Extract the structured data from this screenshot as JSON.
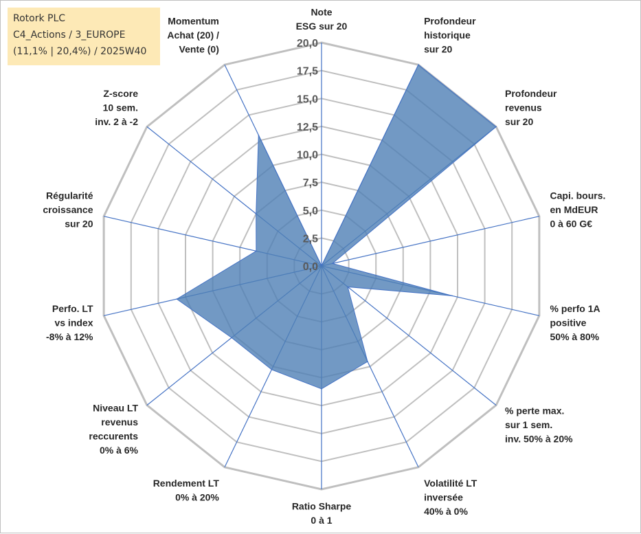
{
  "title_box": {
    "line1": "Rotork PLC",
    "line2": "C4_Actions / 3_EUROPE",
    "line3": "(11,1% | 20,4%) / 2025W40"
  },
  "colors": {
    "fill": "#4f7fb5",
    "stroke": "#4472c4",
    "grid": "#bfbfbf",
    "spoke": "#4472c4",
    "title_bg": "#fde9b6"
  },
  "chart_data": {
    "type": "radar",
    "rmin": 0,
    "rmax": 20,
    "ticks": [
      "0,0",
      "2,5",
      "5,0",
      "7,5",
      "10,0",
      "12,5",
      "15,0",
      "17,5",
      "20,0"
    ],
    "axes": [
      {
        "name": "note-esg",
        "label": [
          "Note",
          "ESG sur 20"
        ],
        "value": 0
      },
      {
        "name": "profondeur-historique",
        "label": [
          "Profondeur",
          "historique",
          "sur 20"
        ],
        "value": 20
      },
      {
        "name": "profondeur-revenus",
        "label": [
          "Profondeur",
          "revenus",
          "sur 20"
        ],
        "value": 20
      },
      {
        "name": "capi-bours",
        "label": [
          "Capi. bours.",
          "en MdEUR",
          "0 à 60 G€"
        ],
        "value": 1
      },
      {
        "name": "perfo-1a-positive",
        "label": [
          "% perfo 1A",
          "positive",
          "50% à 80%"
        ],
        "value": 12
      },
      {
        "name": "perte-max",
        "label": [
          "% perte max.",
          "sur 1 sem.",
          "inv. 50% à 20%"
        ],
        "value": 3
      },
      {
        "name": "volatilite-lt",
        "label": [
          "Volatilité LT",
          "inversée",
          "40% à 0%"
        ],
        "value": 9.5
      },
      {
        "name": "ratio-sharpe",
        "label": [
          "Ratio Sharpe",
          "0 à 1"
        ],
        "value": 11
      },
      {
        "name": "rendement-lt",
        "label": [
          "Rendement LT",
          "0% à 20%"
        ],
        "value": 10.3
      },
      {
        "name": "niveau-lt-revenus",
        "label": [
          "Niveau LT",
          "revenus",
          "reccurents",
          "0% à 6%"
        ],
        "value": 10.3
      },
      {
        "name": "perfo-lt-vs-index",
        "label": [
          "Perfo. LT",
          "vs index",
          "-8% à 12%"
        ],
        "value": 13.3
      },
      {
        "name": "regularite-croissance",
        "label": [
          "Régularité",
          "croissance",
          "sur 20"
        ],
        "value": 6
      },
      {
        "name": "z-score",
        "label": [
          "Z-score",
          "10 sem.",
          "inv. 2 à -2"
        ],
        "value": 7.5
      },
      {
        "name": "momentum",
        "label": [
          "Momentum",
          "Achat (20) /",
          "Vente (0)"
        ],
        "value": 13
      }
    ]
  }
}
